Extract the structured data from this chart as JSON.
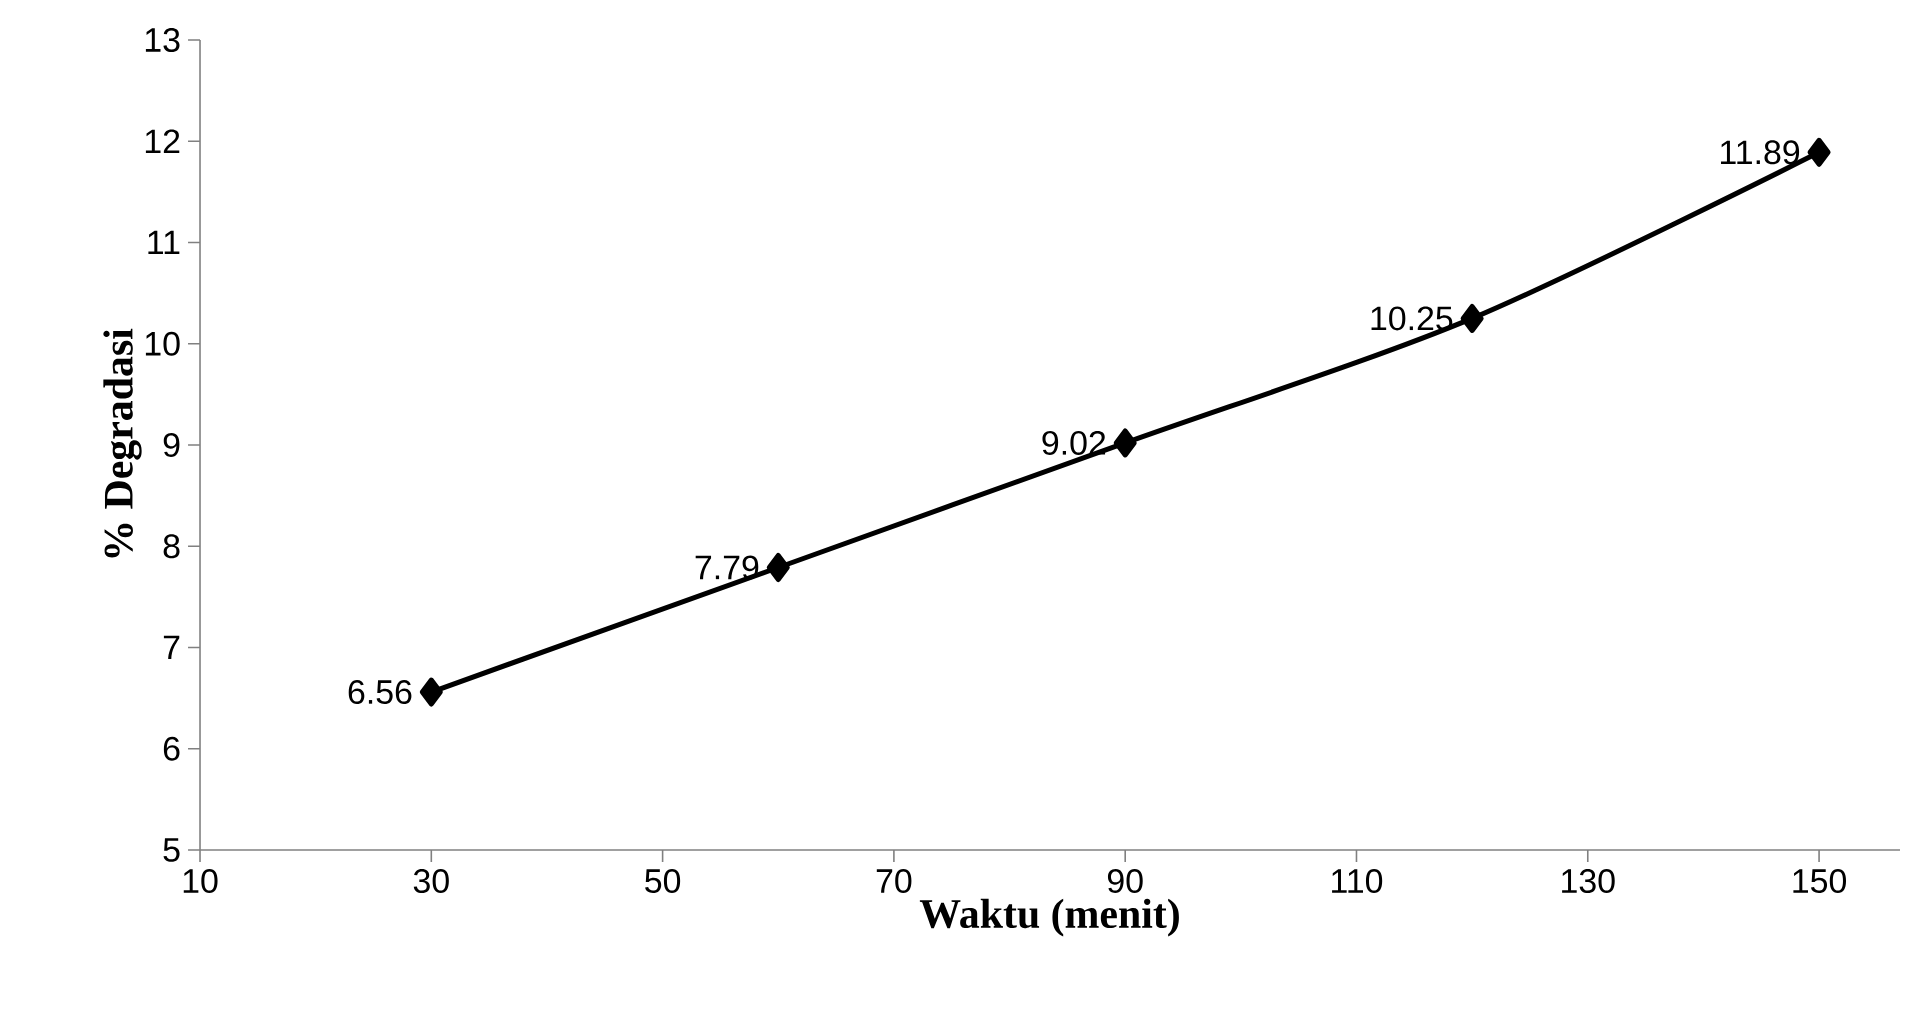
{
  "chart_data": {
    "type": "line",
    "xlabel": "Waktu (menit)",
    "ylabel": "% Degradasi",
    "x": [
      30,
      60,
      90,
      120,
      150
    ],
    "series": [
      {
        "color": "#000000",
        "values": [
          6.56,
          7.79,
          9.02,
          10.25,
          11.89
        ],
        "value_labels": [
          "6.56",
          "7.79",
          "9.02",
          "10.25",
          "11.89"
        ]
      }
    ],
    "xlim": [
      10,
      157
    ],
    "xticks": [
      10,
      30,
      50,
      70,
      90,
      110,
      130,
      150
    ],
    "ylim": [
      5,
      13
    ],
    "yticks": [
      5,
      6,
      7,
      8,
      9,
      10,
      11,
      12,
      13
    ],
    "grid": false,
    "marker": "diamond",
    "line_style": "solid"
  }
}
